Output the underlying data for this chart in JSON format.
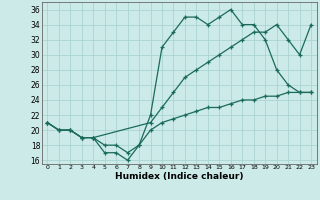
{
  "xlabel": "Humidex (Indice chaleur)",
  "xlim": [
    -0.5,
    23.5
  ],
  "ylim": [
    15.5,
    37
  ],
  "yticks": [
    16,
    18,
    20,
    22,
    24,
    26,
    28,
    30,
    32,
    34,
    36
  ],
  "xticks": [
    0,
    1,
    2,
    3,
    4,
    5,
    6,
    7,
    8,
    9,
    10,
    11,
    12,
    13,
    14,
    15,
    16,
    17,
    18,
    19,
    20,
    21,
    22,
    23
  ],
  "bg_color": "#cceae7",
  "grid_color": "#aad4d0",
  "line_color": "#1a6b5a",
  "line1_x": [
    0,
    1,
    2,
    3,
    4,
    5,
    6,
    7,
    8,
    9,
    10,
    11,
    12,
    13,
    14,
    15,
    16,
    17,
    18,
    19,
    20,
    21,
    22,
    23
  ],
  "line1_y": [
    21,
    20,
    20,
    19,
    19,
    17,
    17,
    16,
    18,
    22,
    31,
    33,
    35,
    35,
    34,
    35,
    36,
    34,
    34,
    32,
    28,
    26,
    25,
    25
  ],
  "line2_x": [
    0,
    1,
    2,
    3,
    4,
    9,
    10,
    11,
    12,
    13,
    14,
    15,
    16,
    17,
    18,
    19,
    20,
    21,
    22,
    23
  ],
  "line2_y": [
    21,
    20,
    20,
    19,
    19,
    21,
    23,
    25,
    27,
    28,
    29,
    30,
    31,
    32,
    33,
    33,
    34,
    32,
    30,
    34
  ],
  "line3_x": [
    0,
    1,
    2,
    3,
    4,
    5,
    6,
    7,
    8,
    9,
    10,
    11,
    12,
    13,
    14,
    15,
    16,
    17,
    18,
    19,
    20,
    21,
    22,
    23
  ],
  "line3_y": [
    21,
    20,
    20,
    19,
    19,
    18,
    18,
    17,
    18,
    20,
    21,
    21.5,
    22,
    22.5,
    23,
    23,
    23.5,
    24,
    24,
    24.5,
    24.5,
    25,
    25,
    25
  ]
}
